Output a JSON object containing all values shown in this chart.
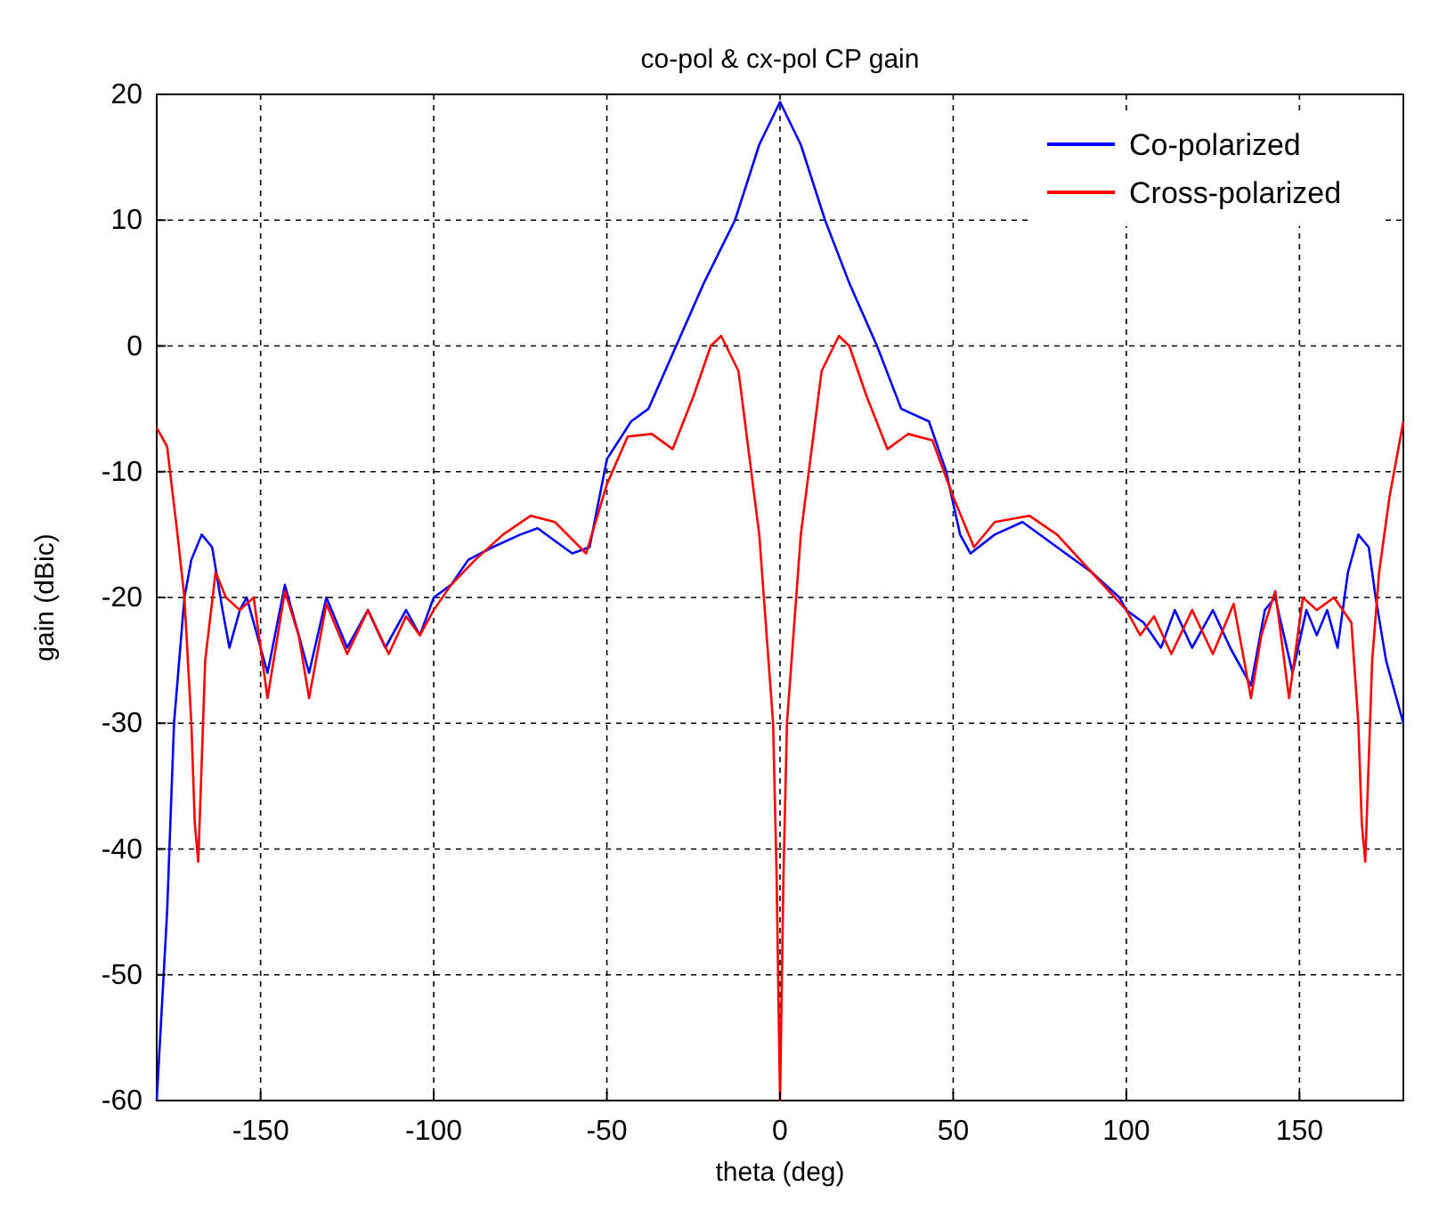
{
  "chart_data": {
    "type": "line",
    "title": "co-pol & cx-pol CP gain",
    "xlabel": "theta (deg)",
    "ylabel": "gain (dBic)",
    "xlim": [
      -180,
      180
    ],
    "xticks": [
      -150,
      -100,
      -50,
      0,
      50,
      100,
      150
    ],
    "ylim": [
      -60,
      20
    ],
    "yticks": [
      -60,
      -50,
      -40,
      -30,
      -20,
      -10,
      0,
      10,
      20
    ],
    "grid": true,
    "legend": "top right",
    "line_style": "solid",
    "series": [
      {
        "name": "Co-polarized",
        "color": "#0000ff",
        "x": [
          -180,
          -178,
          -177,
          -175,
          -172,
          -170,
          -167,
          -164,
          -161,
          -159,
          -156,
          -154,
          -152,
          -148,
          -143,
          -139,
          -136,
          -131,
          -125,
          -119,
          -114,
          -108,
          -104,
          -100,
          -95,
          -90,
          -83,
          -75,
          -70,
          -65,
          -60,
          -55,
          -50,
          -43,
          -38,
          -30,
          -22,
          -13,
          -6,
          0,
          6,
          13,
          20,
          28,
          35,
          43,
          48,
          52,
          55,
          62,
          70,
          80,
          90,
          98,
          100,
          105,
          110,
          114,
          119,
          125,
          130,
          136,
          140,
          143,
          148,
          152,
          155,
          158,
          161,
          164,
          167,
          170,
          172,
          175,
          178,
          180
        ],
        "values": [
          -60,
          -50,
          -45,
          -30,
          -20,
          -17,
          -15,
          -16,
          -21,
          -24,
          -21,
          -20,
          -22,
          -26,
          -19,
          -23,
          -26,
          -20,
          -24,
          -21,
          -24,
          -21,
          -23,
          -20,
          -19,
          -17,
          -16,
          -15,
          -14.5,
          -15.5,
          -16.5,
          -16,
          -9,
          -6,
          -5,
          0,
          5,
          10,
          16,
          19.4,
          16,
          10,
          5,
          0,
          -5,
          -6,
          -10,
          -15,
          -16.5,
          -15,
          -14,
          -16,
          -18,
          -20,
          -21,
          -22,
          -24,
          -21,
          -24,
          -21,
          -24,
          -27,
          -21,
          -20,
          -26,
          -21,
          -23,
          -21,
          -24,
          -18,
          -15,
          -16,
          -20,
          -25,
          -28,
          -30
        ]
      },
      {
        "name": "Cross-polarized",
        "color": "#ff0000",
        "x": [
          -180,
          -177,
          -174,
          -172,
          -170,
          -169,
          -168,
          -166,
          -163,
          -160,
          -156,
          -152,
          -148,
          -143,
          -139,
          -136,
          -131,
          -125,
          -119,
          -113,
          -108,
          -104,
          -100,
          -95,
          -88,
          -80,
          -72,
          -65,
          -56,
          -50,
          -44,
          -37,
          -31,
          -25,
          -20,
          -17,
          -12,
          -6,
          -2,
          -1,
          0,
          1,
          2,
          6,
          12,
          17,
          20,
          25,
          31,
          37,
          44,
          50,
          56,
          62,
          72,
          80,
          90,
          100,
          104,
          108,
          113,
          119,
          125,
          131,
          136,
          139,
          143,
          147,
          151,
          155,
          160,
          165,
          167,
          168,
          169,
          171,
          173,
          176,
          180
        ],
        "values": [
          -6.5,
          -8,
          -15,
          -20,
          -30,
          -38,
          -41,
          -25,
          -18,
          -20,
          -21,
          -20,
          -28,
          -19.5,
          -23,
          -28,
          -20.5,
          -24.5,
          -21,
          -24.5,
          -21.5,
          -23,
          -21,
          -19,
          -17,
          -15,
          -13.5,
          -14,
          -16.5,
          -11,
          -7.2,
          -7,
          -8.2,
          -4,
          0,
          0.8,
          -2,
          -15,
          -30,
          -42,
          -60,
          -42,
          -30,
          -15,
          -2,
          0.8,
          0,
          -4,
          -8.2,
          -7,
          -7.5,
          -12,
          -16,
          -14,
          -13.5,
          -15,
          -18,
          -21,
          -23,
          -21.5,
          -24.5,
          -21,
          -24.5,
          -20.5,
          -28,
          -23,
          -19.5,
          -28,
          -20,
          -21,
          -20,
          -22,
          -30,
          -38,
          -41,
          -25,
          -18,
          -12,
          -6
        ]
      }
    ]
  }
}
